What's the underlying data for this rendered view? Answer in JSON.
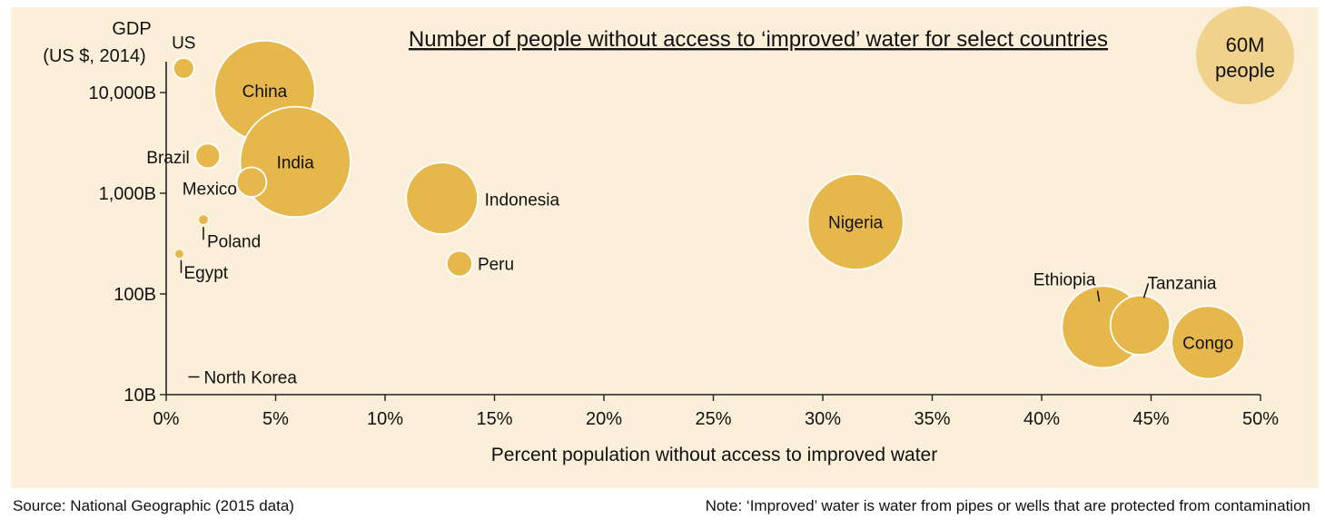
{
  "chart_data": {
    "type": "bubble",
    "title": "Number of people without access to ‘improved’ water for select countries",
    "xlabel": "Percent population without access to improved water",
    "ylabel": [
      "GDP",
      "(US $, 2014)"
    ],
    "x_unit": "percent",
    "y_unit": "US$ billions",
    "y_scale": "log",
    "xlim": [
      0,
      50
    ],
    "ylim": [
      10,
      20000
    ],
    "x_ticks": [
      0,
      5,
      10,
      15,
      20,
      25,
      30,
      35,
      40,
      45,
      50
    ],
    "x_tick_labels": [
      "0%",
      "5%",
      "10%",
      "15%",
      "20%",
      "25%",
      "30%",
      "35%",
      "40%",
      "45%",
      "50%"
    ],
    "y_ticks": [
      10,
      100,
      1000,
      10000
    ],
    "y_tick_labels": [
      "10B",
      "100B",
      "1,000B",
      "10,000B"
    ],
    "size_legend": {
      "label_line1": "60M",
      "label_line2": "people",
      "people_millions": 60
    },
    "points": [
      {
        "country": "US",
        "x": 0.8,
        "y": 17400,
        "people_millions": 2.7
      },
      {
        "country": "China",
        "x": 4.5,
        "y": 10400,
        "people_millions": 63
      },
      {
        "country": "India",
        "x": 5.9,
        "y": 2050,
        "people_millions": 76
      },
      {
        "country": "Brazil",
        "x": 1.9,
        "y": 2350,
        "people_millions": 3.8
      },
      {
        "country": "Mexico",
        "x": 3.9,
        "y": 1290,
        "people_millions": 5.5
      },
      {
        "country": "Poland",
        "x": 1.7,
        "y": 545,
        "people_millions": 0.6
      },
      {
        "country": "Egypt",
        "x": 0.6,
        "y": 250,
        "people_millions": 0.5
      },
      {
        "country": "North Korea",
        "x": 0.6,
        "y": 15,
        "people_millions": 0
      },
      {
        "country": "Indonesia",
        "x": 12.6,
        "y": 890,
        "people_millions": 32
      },
      {
        "country": "Peru",
        "x": 13.4,
        "y": 200,
        "people_millions": 4.1
      },
      {
        "country": "Nigeria",
        "x": 31.5,
        "y": 520,
        "people_millions": 57
      },
      {
        "country": "Ethiopia",
        "x": 42.8,
        "y": 47,
        "people_millions": 42
      },
      {
        "country": "Tanzania",
        "x": 44.5,
        "y": 49,
        "people_millions": 22
      },
      {
        "country": "Congo",
        "x": 47.6,
        "y": 33,
        "people_millions": 33
      }
    ],
    "grid": false,
    "colors": {
      "background": "#fbefd9",
      "bubble": "#e6b84b",
      "legend_bubble": "#f1d28c",
      "axis": "#222222"
    }
  },
  "footer": {
    "source": "Source: National Geographic (2015 data)",
    "note": "Note: ‘Improved’ water is water from pipes or wells that are protected from contamination"
  }
}
